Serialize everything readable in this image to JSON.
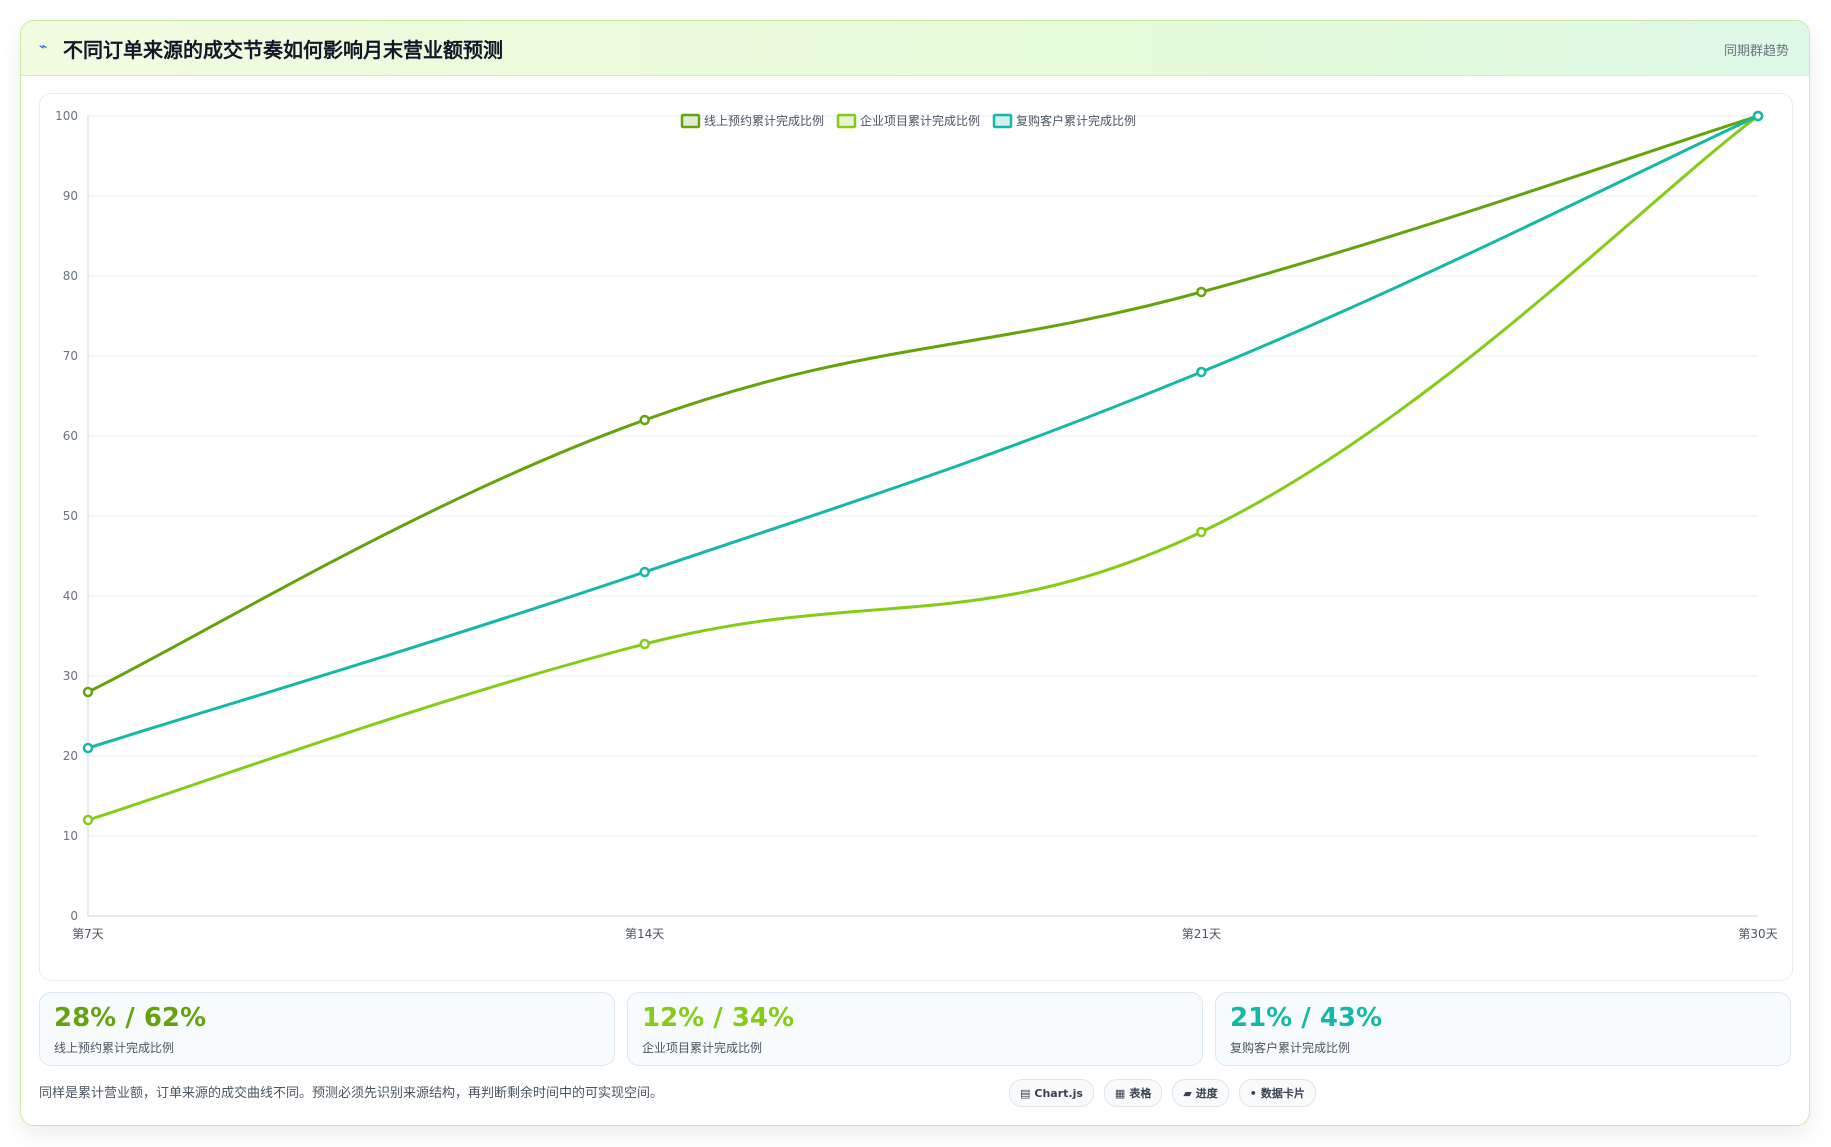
{
  "header": {
    "icon": "sparkle-icon",
    "title": "不同订单来源的成交节奏如何影响月末营业额预测",
    "subtitle": "同期群趋势"
  },
  "chart_data": {
    "type": "line",
    "categories": [
      "第7天",
      "第14天",
      "第21天",
      "第30天"
    ],
    "ylim": [
      0,
      100
    ],
    "yticks": [
      0,
      10,
      20,
      30,
      40,
      50,
      60,
      70,
      80,
      90,
      100
    ],
    "legend_position": "top-center",
    "grid": true,
    "series": [
      {
        "name": "线上预约累计完成比例",
        "color": "#65a30d",
        "values": [
          28,
          62,
          78,
          100
        ]
      },
      {
        "name": "企业项目累计完成比例",
        "color": "#84cc16",
        "values": [
          12,
          34,
          48,
          100
        ]
      },
      {
        "name": "复购客户累计完成比例",
        "color": "#14b8a6",
        "values": [
          21,
          43,
          68,
          100
        ]
      }
    ]
  },
  "stats": [
    {
      "value": "28% / 62%",
      "label": "线上预约累计完成比例",
      "color": "#65a30d"
    },
    {
      "value": "12% / 34%",
      "label": "企业项目累计完成比例",
      "color": "#84cc16"
    },
    {
      "value": "21% / 43%",
      "label": "复购客户累计完成比例",
      "color": "#14b8a6"
    }
  ],
  "footnote": "同样是累计营业额，订单来源的成交曲线不同。预测必须先识别来源结构，再判断剩余时间中的可实现空间。",
  "badges": [
    {
      "icon": "chart-icon",
      "glyph": "▤",
      "label": "Chart.js"
    },
    {
      "icon": "table-icon",
      "glyph": "▦",
      "label": "表格"
    },
    {
      "icon": "progress-icon",
      "glyph": "▰",
      "label": "进度"
    },
    {
      "icon": "card-icon",
      "glyph": "•",
      "label": "数据卡片"
    }
  ]
}
